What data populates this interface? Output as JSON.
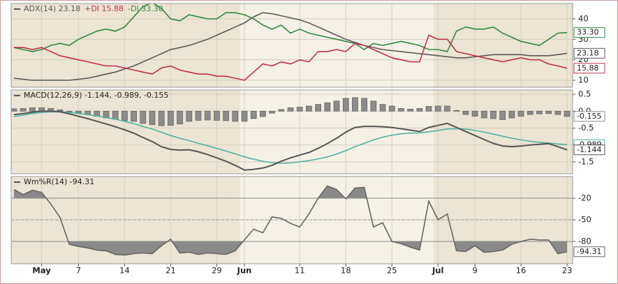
{
  "chart_data": [
    {
      "type": "line",
      "xlim": [
        -0.3,
        60.6
      ],
      "ylim": [
        6.6,
        47.5
      ],
      "yticks": [
        10,
        20,
        30,
        40
      ],
      "grid": true,
      "series": [
        {
          "name": "-DI",
          "legend": "-DI 33.30",
          "color": "#2e8b3e",
          "values": [
            26,
            25,
            24,
            25,
            27,
            28,
            27,
            30,
            32,
            34,
            35,
            34,
            36,
            41,
            46,
            48,
            45,
            40,
            39,
            42,
            41,
            40,
            40,
            43,
            43,
            42,
            40,
            37,
            35,
            37,
            33,
            35,
            33,
            32,
            31,
            30,
            29,
            28,
            25,
            28,
            27,
            28,
            29,
            28,
            27,
            25,
            25,
            24,
            34,
            36,
            35,
            35,
            36,
            33,
            31,
            29,
            28,
            27,
            30,
            33,
            33.3
          ],
          "value_labels": [
            null,
            null,
            null,
            null,
            null,
            null,
            null,
            null,
            null,
            null,
            null,
            null,
            null,
            null,
            null,
            null,
            null,
            null,
            null,
            null,
            null,
            null,
            null,
            null,
            null,
            null,
            null,
            null,
            null,
            null,
            null,
            null,
            null,
            null,
            null,
            null,
            null,
            null,
            null,
            null,
            null,
            null,
            null,
            null,
            null,
            null,
            null,
            null,
            null,
            null,
            null,
            null,
            null,
            null,
            null,
            null,
            null,
            null,
            null,
            null,
            "33.30"
          ]
        },
        {
          "name": "ADX(14)",
          "legend": "ADX(14) 23.18",
          "color": "#5a5a5a",
          "values": [
            11,
            10.5,
            10,
            10,
            10,
            10,
            10,
            10.5,
            11,
            12,
            13,
            14,
            15.5,
            17,
            19,
            21,
            23,
            25,
            26,
            27,
            28.5,
            30,
            32,
            34,
            36,
            38,
            41,
            43,
            42.5,
            41.5,
            40.5,
            39.5,
            38,
            36,
            34,
            32,
            30,
            28.5,
            27,
            26,
            25,
            24.5,
            24,
            23.5,
            23,
            22.5,
            22,
            21.5,
            21,
            21,
            21.5,
            22,
            22.5,
            22.5,
            22.5,
            22.5,
            22,
            22,
            22,
            22.5,
            23.18
          ],
          "value_labels": [
            null,
            null,
            null,
            null,
            null,
            null,
            null,
            null,
            null,
            null,
            null,
            null,
            null,
            null,
            null,
            null,
            null,
            null,
            null,
            null,
            null,
            null,
            null,
            null,
            null,
            null,
            null,
            null,
            null,
            null,
            null,
            null,
            null,
            null,
            null,
            null,
            null,
            null,
            null,
            null,
            null,
            null,
            null,
            null,
            null,
            null,
            null,
            null,
            null,
            null,
            null,
            null,
            null,
            null,
            null,
            null,
            null,
            null,
            null,
            null,
            "23.18"
          ]
        },
        {
          "name": "+DI",
          "legend": "+DI 15.88",
          "color": "#c0304a",
          "values": [
            26,
            26,
            25,
            26,
            24,
            22,
            21,
            20,
            19,
            18,
            17,
            17,
            16,
            15,
            14,
            13,
            16,
            17,
            15,
            14,
            13,
            13,
            12,
            12,
            11,
            10,
            14,
            18,
            17,
            19,
            18,
            20,
            19,
            24,
            24,
            25,
            24,
            28,
            27,
            25,
            23,
            21,
            20,
            19,
            19,
            32,
            30,
            30,
            24,
            23,
            22,
            21,
            20,
            19,
            20,
            21,
            20,
            20,
            18,
            17,
            15.88
          ],
          "value_labels": [
            null,
            null,
            null,
            null,
            null,
            null,
            null,
            null,
            null,
            null,
            null,
            null,
            null,
            null,
            null,
            null,
            null,
            null,
            null,
            null,
            null,
            null,
            null,
            null,
            null,
            null,
            null,
            null,
            null,
            null,
            null,
            null,
            null,
            null,
            null,
            null,
            null,
            null,
            null,
            null,
            null,
            null,
            null,
            null,
            null,
            null,
            null,
            null,
            null,
            null,
            null,
            null,
            null,
            null,
            null,
            null,
            null,
            null,
            null,
            null,
            "15.88"
          ]
        }
      ]
    },
    {
      "type": "line",
      "legend": "MACD(12,26,9) -1.144, -0.989, -0.155",
      "xlim": [
        -0.3,
        60.6
      ],
      "ylim": [
        -1.85,
        0.625
      ],
      "yticks": [
        0.5,
        {
          "value": 0,
          "label": "0.0"
        },
        -0.5,
        {
          "value": -1,
          "label": "-1.0"
        },
        -1.5
      ],
      "grid": true,
      "series": [
        {
          "name": "Histogram",
          "type": "bar",
          "color": "#8c8c8c",
          "values": [
            0.07,
            0.08,
            0.1,
            0.1,
            0.08,
            0.04,
            -0.02,
            -0.06,
            -0.1,
            -0.15,
            -0.2,
            -0.24,
            -0.28,
            -0.3,
            -0.36,
            -0.4,
            -0.43,
            -0.42,
            -0.38,
            -0.3,
            -0.27,
            -0.26,
            -0.27,
            -0.28,
            -0.3,
            -0.3,
            -0.22,
            -0.16,
            -0.06,
            0.05,
            0.1,
            0.12,
            0.15,
            0.2,
            0.25,
            0.3,
            0.38,
            0.4,
            0.38,
            0.3,
            0.2,
            0.15,
            0.08,
            0.06,
            0.08,
            0.14,
            0.15,
            0.15,
            0.02,
            -0.1,
            -0.15,
            -0.2,
            -0.22,
            -0.25,
            -0.2,
            -0.15,
            -0.1,
            -0.08,
            -0.07,
            -0.1,
            -0.155
          ],
          "value_labels": [
            null,
            null,
            null,
            null,
            null,
            null,
            null,
            null,
            null,
            null,
            null,
            null,
            null,
            null,
            null,
            null,
            null,
            null,
            null,
            null,
            null,
            null,
            null,
            null,
            null,
            null,
            null,
            null,
            null,
            null,
            null,
            null,
            null,
            null,
            null,
            null,
            null,
            null,
            null,
            null,
            null,
            null,
            null,
            null,
            null,
            null,
            null,
            null,
            null,
            null,
            null,
            null,
            null,
            null,
            null,
            null,
            null,
            null,
            null,
            null,
            "-0.155"
          ]
        },
        {
          "name": "Signal",
          "color": "#4fb3a5",
          "values": [
            -0.16,
            -0.12,
            -0.07,
            -0.04,
            -0.02,
            -0.02,
            -0.04,
            -0.07,
            -0.1,
            -0.14,
            -0.19,
            -0.24,
            -0.3,
            -0.37,
            -0.45,
            -0.53,
            -0.62,
            -0.72,
            -0.8,
            -0.87,
            -0.95,
            -1.02,
            -1.1,
            -1.18,
            -1.26,
            -1.35,
            -1.42,
            -1.48,
            -1.52,
            -1.54,
            -1.53,
            -1.5,
            -1.46,
            -1.41,
            -1.35,
            -1.27,
            -1.17,
            -1.05,
            -0.95,
            -0.85,
            -0.77,
            -0.71,
            -0.67,
            -0.65,
            -0.64,
            -0.61,
            -0.57,
            -0.53,
            -0.52,
            -0.53,
            -0.57,
            -0.62,
            -0.68,
            -0.74,
            -0.8,
            -0.85,
            -0.89,
            -0.92,
            -0.94,
            -0.97,
            -0.989
          ],
          "value_labels": [
            null,
            null,
            null,
            null,
            null,
            null,
            null,
            null,
            null,
            null,
            null,
            null,
            null,
            null,
            null,
            null,
            null,
            null,
            null,
            null,
            null,
            null,
            null,
            null,
            null,
            null,
            null,
            null,
            null,
            null,
            null,
            null,
            null,
            null,
            null,
            null,
            null,
            null,
            null,
            null,
            null,
            null,
            null,
            null,
            null,
            null,
            null,
            null,
            null,
            null,
            null,
            null,
            null,
            null,
            null,
            null,
            null,
            null,
            null,
            null,
            "-0.989"
          ]
        },
        {
          "name": "MACD",
          "color": "#555555",
          "width": 2,
          "values": [
            -0.1,
            -0.07,
            -0.03,
            0,
            0,
            -0.02,
            -0.08,
            -0.15,
            -0.22,
            -0.3,
            -0.38,
            -0.46,
            -0.55,
            -0.65,
            -0.78,
            -0.9,
            -1.05,
            -1.13,
            -1.15,
            -1.14,
            -1.2,
            -1.28,
            -1.38,
            -1.48,
            -1.6,
            -1.74,
            -1.72,
            -1.68,
            -1.6,
            -1.48,
            -1.38,
            -1.3,
            -1.22,
            -1.1,
            -0.96,
            -0.8,
            -0.62,
            -0.48,
            -0.45,
            -0.45,
            -0.46,
            -0.48,
            -0.52,
            -0.56,
            -0.6,
            -0.48,
            -0.42,
            -0.36,
            -0.48,
            -0.6,
            -0.72,
            -0.84,
            -0.95,
            -1.03,
            -1.05,
            -1.03,
            -1,
            -0.98,
            -0.96,
            -1.05,
            -1.144
          ],
          "value_labels": [
            null,
            null,
            null,
            null,
            null,
            null,
            null,
            null,
            null,
            null,
            null,
            null,
            null,
            null,
            null,
            null,
            null,
            null,
            null,
            null,
            null,
            null,
            null,
            null,
            null,
            null,
            null,
            null,
            null,
            null,
            null,
            null,
            null,
            null,
            null,
            null,
            null,
            null,
            null,
            null,
            null,
            null,
            null,
            null,
            null,
            null,
            null,
            null,
            null,
            null,
            null,
            null,
            null,
            null,
            null,
            null,
            null,
            null,
            null,
            null,
            "-1.144"
          ]
        }
      ]
    },
    {
      "type": "line",
      "legend": "Wm%R(14) -94.31",
      "xlim": [
        -0.3,
        60.6
      ],
      "ylim": [
        -111,
        10
      ],
      "yticks": [
        -20,
        -50,
        -80
      ],
      "grid": true,
      "overbought": -20,
      "oversold": -80,
      "xticks": [
        {
          "value": 3,
          "label": "May"
        },
        7,
        12,
        17,
        22,
        {
          "value": 25,
          "label": "Jun"
        },
        31,
        36,
        41,
        {
          "value": 46,
          "label": "Jul"
        },
        50,
        55,
        60
      ],
      "xtick_labels": [
        "May",
        "7",
        "14",
        "21",
        "29",
        "Jun",
        "11",
        "18",
        "25",
        "Jul",
        "9",
        "16",
        "23"
      ],
      "series": [
        {
          "name": "Wm%R(14)",
          "color": "#666666",
          "fill": "#8a8a8a",
          "values": [
            -8,
            -15,
            -9,
            -12,
            -28,
            -47,
            -84,
            -87,
            -89,
            -92,
            -93,
            -98,
            -99,
            -97,
            -96,
            -97,
            -86,
            -77,
            -96,
            -95,
            -98,
            -96,
            -97,
            -98,
            -93,
            -78,
            -63,
            -68,
            -46,
            -48,
            -55,
            -60,
            -42,
            -20,
            -3,
            -8,
            -21,
            -6,
            -5,
            -60,
            -54,
            -80,
            -83,
            -88,
            -92,
            -24,
            -50,
            -42,
            -93,
            -94,
            -86,
            -95,
            -94,
            -92,
            -84,
            -80,
            -77,
            -78,
            -78,
            -97,
            -94.31
          ],
          "value_labels": [
            null,
            null,
            null,
            null,
            null,
            null,
            null,
            null,
            null,
            null,
            null,
            null,
            null,
            null,
            null,
            null,
            null,
            null,
            null,
            null,
            null,
            null,
            null,
            null,
            null,
            null,
            null,
            null,
            null,
            null,
            null,
            null,
            null,
            null,
            null,
            null,
            null,
            null,
            null,
            null,
            null,
            null,
            null,
            null,
            null,
            null,
            null,
            null,
            null,
            null,
            null,
            null,
            null,
            null,
            null,
            null,
            null,
            null,
            null,
            null,
            "-94.31"
          ]
        }
      ]
    }
  ]
}
